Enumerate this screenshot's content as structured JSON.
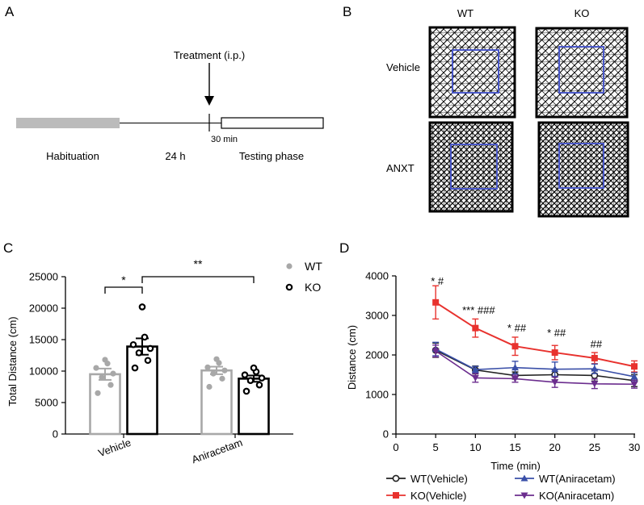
{
  "colors": {
    "wt_gray": "#a8a8a8",
    "habituation_bar": "#bbbbbb",
    "ko_vehicle_red": "#e8322e",
    "wt_aniracetam_blue": "#3a4fa8",
    "ko_aniracetam_purple": "#6b2d8e",
    "arena_box_blue": "#4a58c8"
  },
  "panel_a": {
    "letter": "A",
    "treatment_label": "Treatment (i.p.)",
    "delay_label": "30 min",
    "habituation_label": "Habituation",
    "interval_label": "24 h",
    "testing_label": "Testing phase"
  },
  "panel_b": {
    "letter": "B",
    "col_labels": [
      "WT",
      "KO"
    ],
    "row_labels": [
      "Vehicle",
      "ANXT"
    ]
  },
  "chart_data": [
    {
      "panel": "C",
      "type": "bar",
      "ylabel": "Total Distance (cm)",
      "xlabel": "",
      "ylim": [
        0,
        25000
      ],
      "yticks": [
        0,
        5000,
        10000,
        15000,
        20000,
        25000
      ],
      "groups": [
        "Vehicle",
        "Aniracetam"
      ],
      "legend": [
        "WT",
        "KO"
      ],
      "series": [
        {
          "name": "WT",
          "values": [
            9500,
            10100
          ],
          "sem": [
            900,
            600
          ],
          "points": [
            [
              6500,
              7800,
              9000,
              9600,
              10500,
              11200,
              11800
            ],
            [
              7500,
              8800,
              9600,
              10100,
              10600,
              11300,
              11900
            ]
          ]
        },
        {
          "name": "KO",
          "values": [
            13900,
            8800
          ],
          "sem": [
            1300,
            500
          ],
          "points": [
            [
              10500,
              11700,
              12900,
              13600,
              14200,
              15400,
              20200
            ],
            [
              6800,
              7800,
              8500,
              8900,
              9400,
              9900,
              10500
            ]
          ]
        }
      ],
      "significance": [
        {
          "label": "*"
        },
        {
          "label": "**"
        }
      ]
    },
    {
      "panel": "D",
      "type": "line",
      "xlabel": "Time (min)",
      "ylabel": "Distance (cm)",
      "x": [
        5,
        10,
        15,
        20,
        25,
        30
      ],
      "xlim": [
        0,
        30
      ],
      "ylim": [
        0,
        4000
      ],
      "xticks": [
        0,
        5,
        10,
        15,
        20,
        25,
        30
      ],
      "yticks": [
        0,
        1000,
        2000,
        3000,
        4000
      ],
      "series": [
        {
          "name": "WT(Vehicle)",
          "values": [
            2120,
            1620,
            1480,
            1500,
            1480,
            1350
          ],
          "sem": [
            180,
            100,
            90,
            130,
            140,
            150
          ]
        },
        {
          "name": "KO(Vehicle)",
          "values": [
            3330,
            2680,
            2220,
            2060,
            1920,
            1710
          ],
          "sem": [
            420,
            230,
            230,
            180,
            140,
            140
          ]
        },
        {
          "name": "WT(Aniracetam)",
          "values": [
            2150,
            1630,
            1680,
            1640,
            1650,
            1450
          ],
          "sem": [
            170,
            80,
            160,
            180,
            120,
            100
          ]
        },
        {
          "name": "KO(Aniracetam)",
          "values": [
            2100,
            1420,
            1400,
            1310,
            1270,
            1260
          ],
          "sem": [
            150,
            110,
            90,
            130,
            120,
            100
          ]
        }
      ],
      "annotations": [
        {
          "x": 5,
          "label": "* #"
        },
        {
          "x": 10,
          "label": "*** ###"
        },
        {
          "x": 15,
          "label": "* ##"
        },
        {
          "x": 20,
          "label": "* ##"
        },
        {
          "x": 25,
          "label": "##"
        }
      ]
    }
  ]
}
